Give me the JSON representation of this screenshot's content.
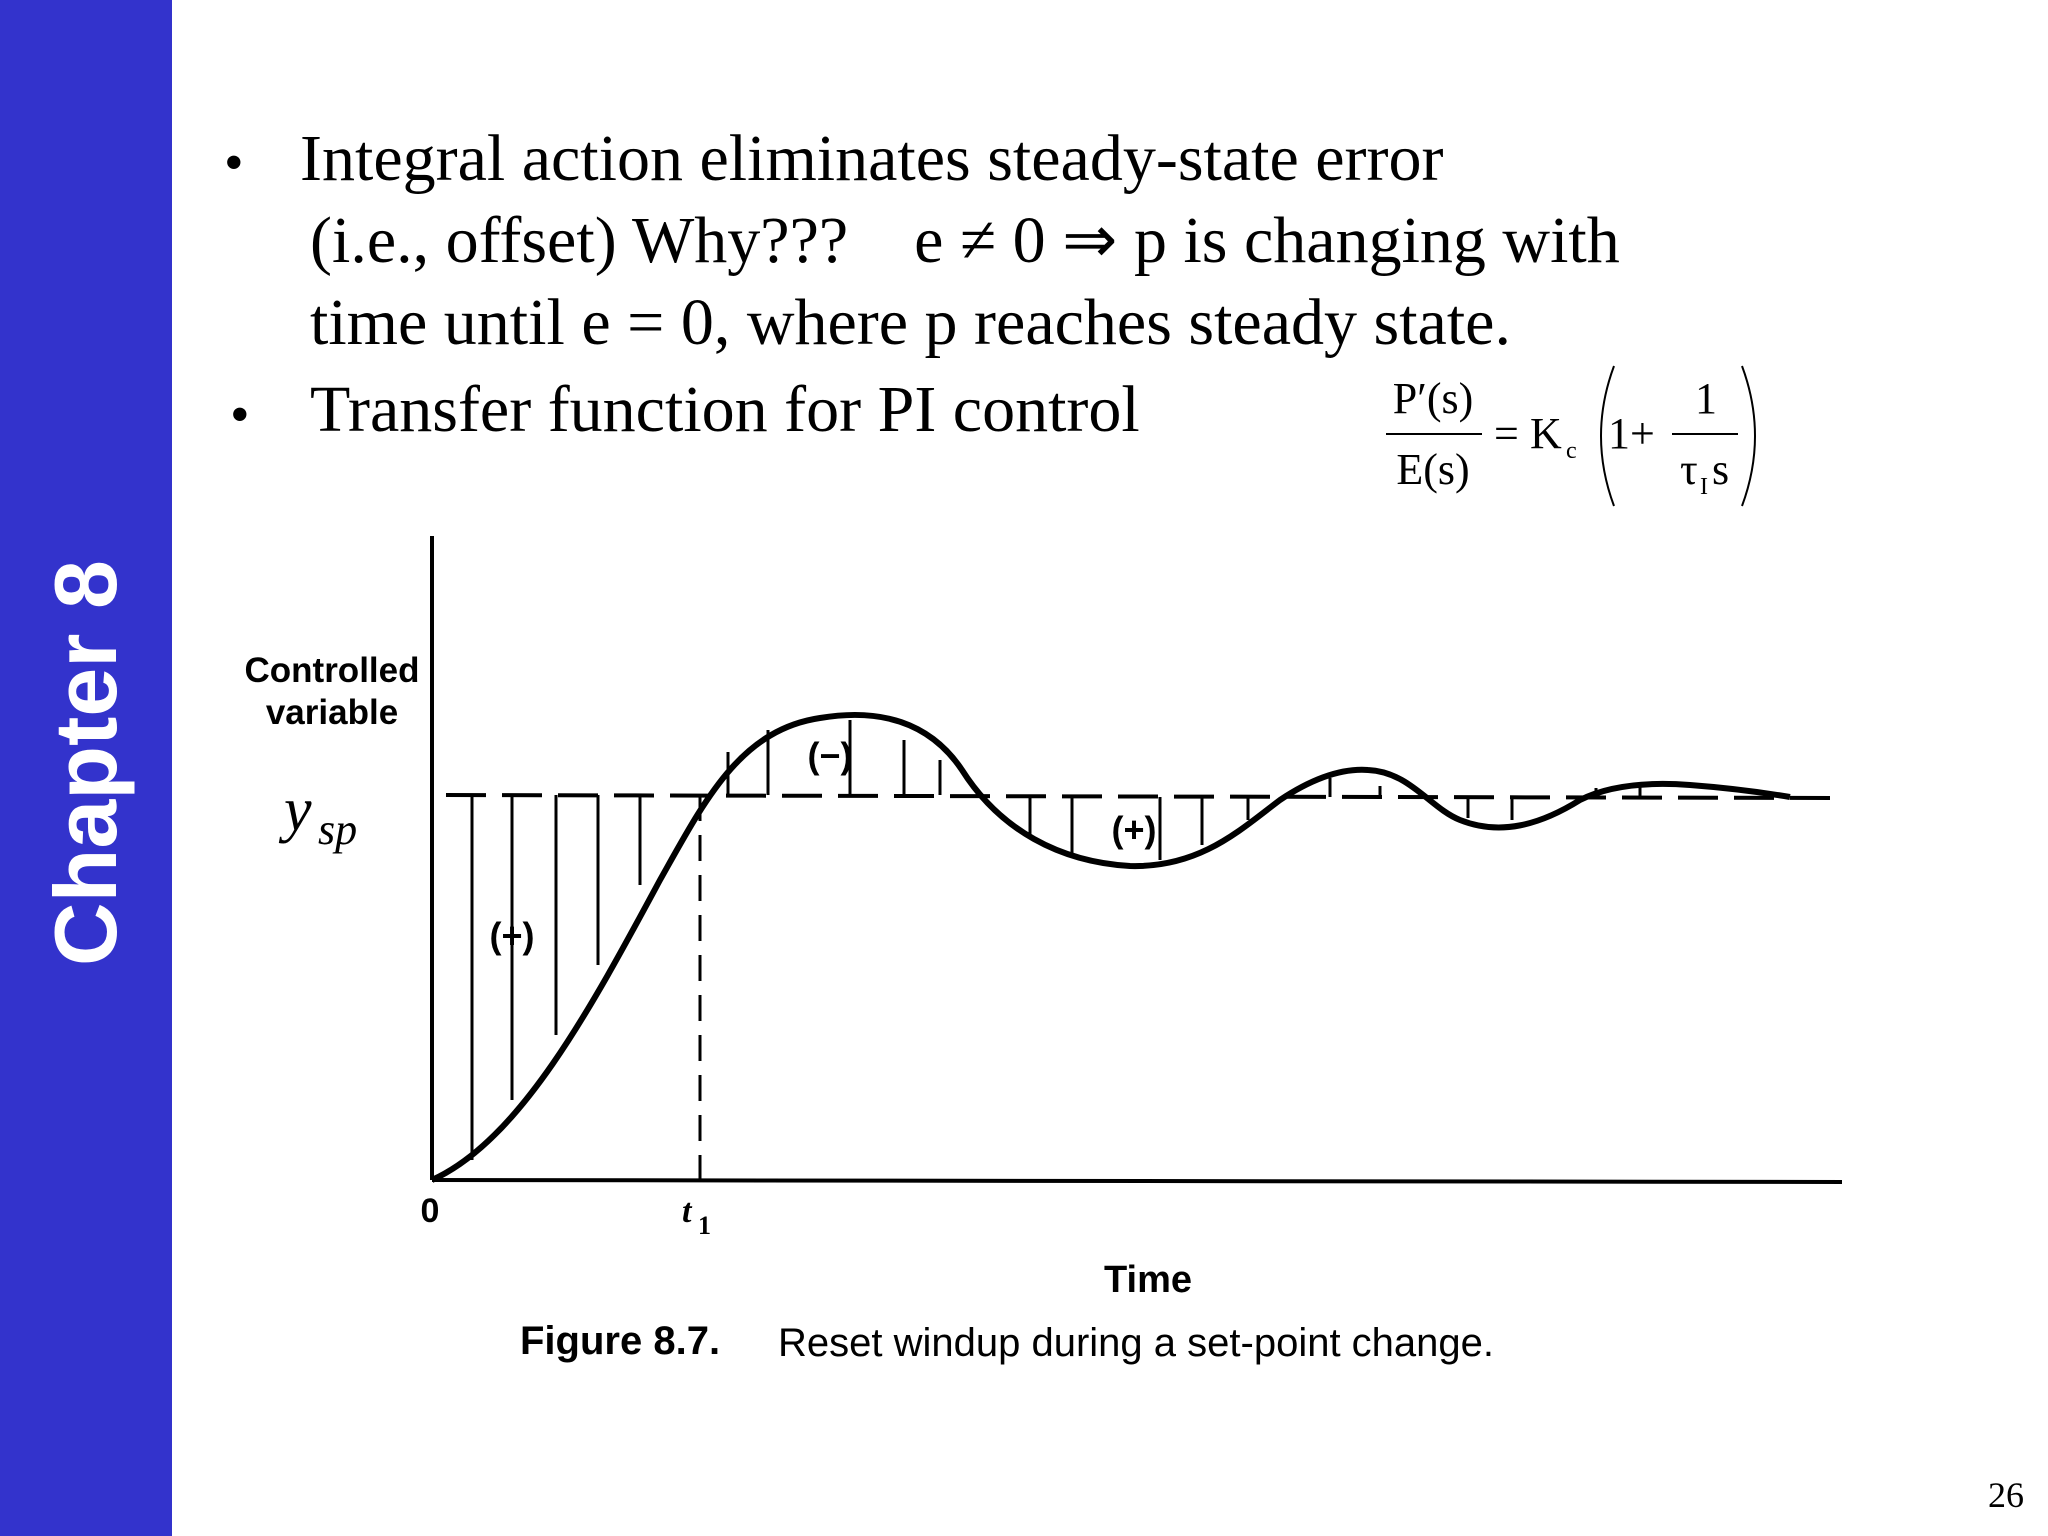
{
  "sidebar": {
    "label": "Chapter 8",
    "color": "#3333CC"
  },
  "bullets": [
    {
      "lines": [
        "Integral action eliminates steady-state error",
        "(i.e., offset) Why???    e ≠ 0 ⇒ p is changing with",
        "time until e = 0, where p reaches steady state."
      ]
    },
    {
      "lines": [
        "Transfer function for PI control"
      ]
    }
  ],
  "equation": {
    "lhs_numerator": "P′(s)",
    "lhs_denominator": "E(s)",
    "equals": "=",
    "gain": "K",
    "gain_subscript": "c",
    "one_plus": "1+",
    "inner_numerator": "1",
    "inner_denominator_symbol": "τ",
    "inner_denominator_subscript": "I",
    "inner_denominator_var": "s"
  },
  "figure": {
    "ylabel_line1": "Controlled",
    "ylabel_line2": "variable",
    "setpoint_label": "y",
    "setpoint_subscript": "sp",
    "origin_label": "0",
    "t1_label": "t",
    "t1_subscript": "1",
    "xlabel": "Time",
    "area_labels": [
      "(+)",
      "(−)",
      "(+)"
    ],
    "caption_number": "Figure 8.7.",
    "caption_text": "Reset windup during a set-point change."
  },
  "page_number": "26"
}
